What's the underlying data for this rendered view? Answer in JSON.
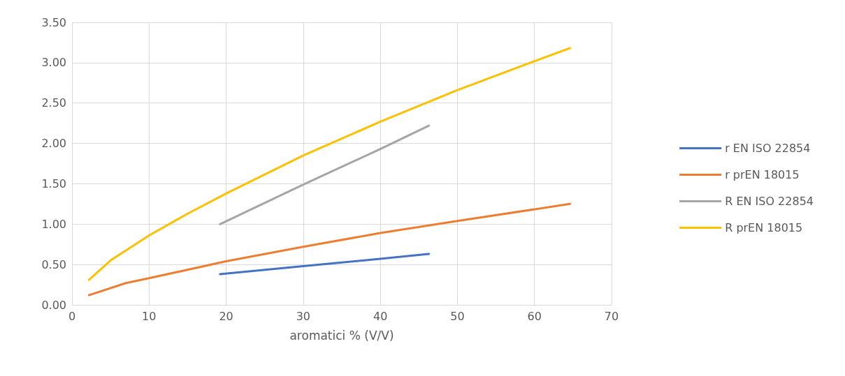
{
  "chart_data": {
    "type": "line",
    "xlabel": "aromatici % (V/V)",
    "xlim": [
      0,
      70
    ],
    "xticks": [
      0,
      10,
      20,
      30,
      40,
      50,
      60,
      70
    ],
    "ylim": [
      0,
      3.5
    ],
    "yticks": [
      {
        "value": 0,
        "label": "0.00"
      },
      {
        "value": 0.5,
        "label": "0.50"
      },
      {
        "value": 1,
        "label": "1.00"
      },
      {
        "value": 1.5,
        "label": "1.50"
      },
      {
        "value": 2,
        "label": "2.00"
      },
      {
        "value": 2.5,
        "label": "2.50"
      },
      {
        "value": 3,
        "label": "3.00"
      },
      {
        "value": 3.5,
        "label": "3.50"
      }
    ],
    "grid": true,
    "legend": "right",
    "marker": "none",
    "line_style": "solid",
    "series": [
      {
        "name": "r EN ISO 22854",
        "color": "#4472c4",
        "x": [
          19.2,
          30,
          40,
          46.3
        ],
        "values": [
          0.38,
          0.48,
          0.57,
          0.63
        ]
      },
      {
        "name": "r prEN 18015",
        "color": "#ed7d31",
        "x": [
          2.2,
          7,
          10,
          20,
          30,
          40,
          50,
          64.6
        ],
        "values": [
          0.12,
          0.27,
          0.33,
          0.54,
          0.72,
          0.89,
          1.04,
          1.25
        ]
      },
      {
        "name": "R EN ISO 22854",
        "color": "#a5a5a5",
        "x": [
          19.2,
          30,
          40,
          46.3
        ],
        "values": [
          1.0,
          1.49,
          1.93,
          2.22
        ]
      },
      {
        "name": "R prEN 18015",
        "color": "#ffc000",
        "x": [
          2.2,
          5,
          10,
          15,
          20,
          30,
          40,
          50,
          60,
          64.6
        ],
        "values": [
          0.31,
          0.55,
          0.86,
          1.13,
          1.38,
          1.85,
          2.27,
          2.66,
          3.02,
          3.18
        ]
      }
    ]
  }
}
